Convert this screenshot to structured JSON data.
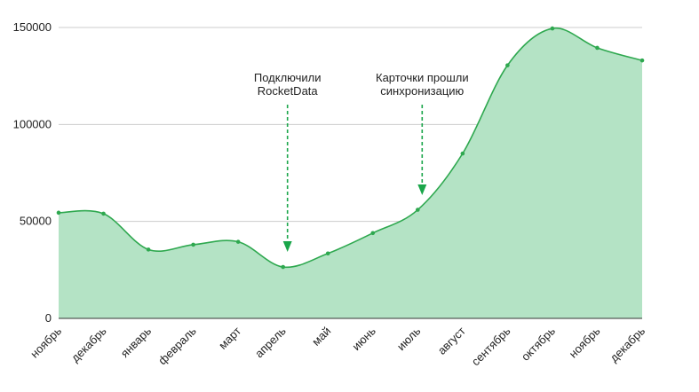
{
  "chart_data": {
    "type": "area",
    "categories": [
      "ноябрь",
      "декабрь",
      "январь",
      "февраль",
      "март",
      "апрель",
      "май",
      "июнь",
      "июль",
      "август",
      "сентябрь",
      "октябрь",
      "ноябрь",
      "декабрь"
    ],
    "values": [
      54500,
      54000,
      35500,
      38000,
      39500,
      26500,
      33500,
      44000,
      56000,
      85000,
      130500,
      149500,
      139500,
      133000
    ],
    "ylim": [
      0,
      150000
    ],
    "yticks": [
      "0",
      "50000",
      "100000",
      "150000"
    ],
    "grid": true,
    "legend": "none",
    "colors": {
      "fill": "#b4e3c5",
      "line": "#2ea84f",
      "arrow": "#1aa64a",
      "grid": "#cccccc"
    },
    "annotations": [
      {
        "lines": [
          "Подключили",
          "RocketData"
        ],
        "x_index": 5
      },
      {
        "lines": [
          "Карточки прошли",
          "синхронизацию"
        ],
        "x_index": 8
      }
    ]
  }
}
